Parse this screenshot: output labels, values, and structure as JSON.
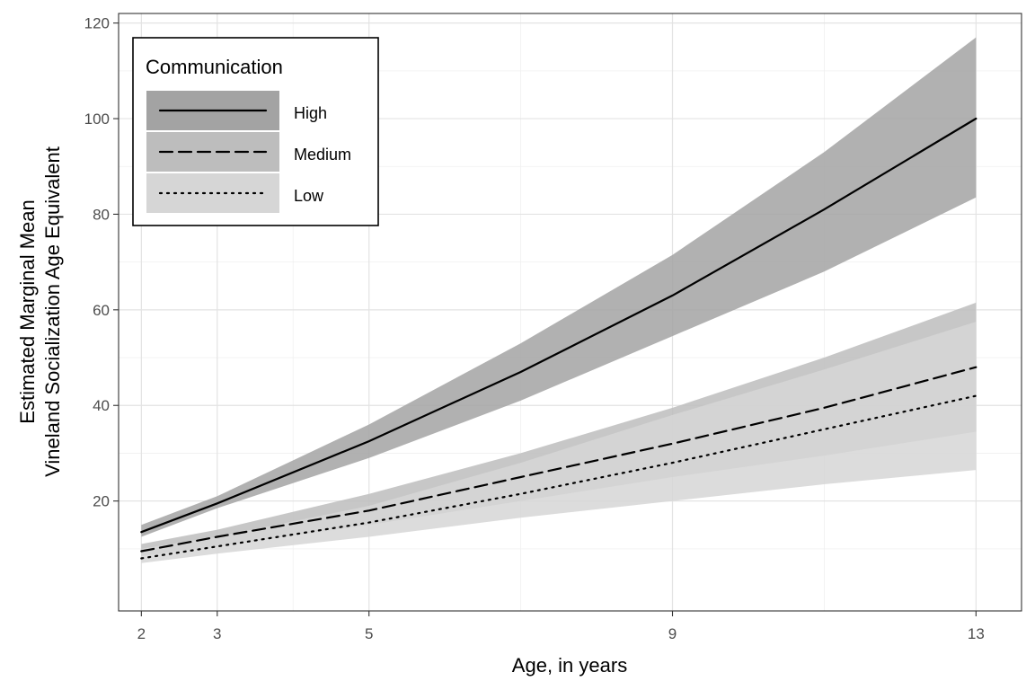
{
  "chart_data": {
    "type": "line",
    "xlabel": "Age, in years",
    "ylabel_lines": [
      "Estimated Marginal Mean",
      "Vineland Socialization Age Equivalent"
    ],
    "xlim": [
      1.7,
      13.6
    ],
    "ylim": [
      -3,
      122
    ],
    "x_ticks": [
      2,
      3,
      5,
      9,
      13
    ],
    "x_minor_grid": [
      4,
      7,
      11
    ],
    "y_ticks": [
      20,
      40,
      60,
      80,
      100,
      120
    ],
    "y_minor_grid": [
      10,
      30,
      50,
      70,
      90,
      110
    ],
    "grid": true,
    "legend": {
      "title": "Communication",
      "position": "top-left",
      "entries": [
        "High",
        "Medium",
        "Low"
      ]
    },
    "series": [
      {
        "name": "High",
        "line_style": "solid",
        "ribbon_color": "#a3a3a3",
        "x": [
          2,
          3,
          5,
          7,
          9,
          11,
          13
        ],
        "y": [
          13.5,
          19.5,
          32.5,
          47,
          63,
          81,
          100
        ],
        "lower": [
          12.5,
          18.5,
          29,
          41,
          54.5,
          68,
          83.5
        ],
        "upper": [
          15,
          21,
          36,
          53,
          71.5,
          93,
          117
        ]
      },
      {
        "name": "Medium",
        "line_style": "dashed",
        "ribbon_color": "#bdbdbd",
        "x": [
          2,
          3,
          5,
          7,
          9,
          11,
          13
        ],
        "y": [
          9.5,
          12.5,
          18,
          25,
          32,
          39.5,
          48
        ],
        "lower": [
          8.5,
          10.5,
          15,
          20,
          25,
          29.5,
          34.5
        ],
        "upper": [
          11,
          14,
          21.5,
          30,
          39.5,
          50,
          61.5
        ]
      },
      {
        "name": "Low",
        "line_style": "dotted",
        "ribbon_color": "#d6d6d6",
        "x": [
          2,
          3,
          5,
          7,
          9,
          11,
          13
        ],
        "y": [
          8,
          10.5,
          15.5,
          21.5,
          28,
          35,
          42
        ],
        "lower": [
          7,
          9,
          12.5,
          16.5,
          20,
          23.5,
          26.5
        ],
        "upper": [
          10,
          12.5,
          19,
          28,
          38,
          47.5,
          57.5
        ]
      }
    ]
  }
}
